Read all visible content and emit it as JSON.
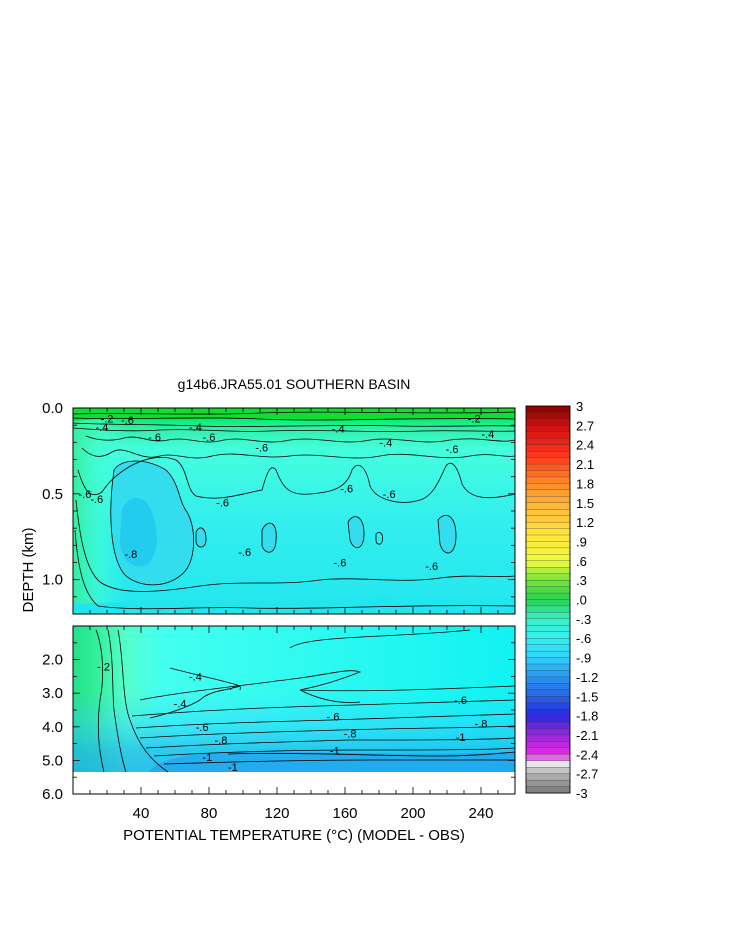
{
  "chart_data": {
    "type": "heatmap",
    "title": "g14b6.JRA55.01 SOUTHERN BASIN",
    "xlabel": "POTENTIAL TEMPERATURE (°C) (MODEL - OBS)",
    "ylabel": "DEPTH (km)",
    "xlim": [
      0,
      260
    ],
    "x_ticks": [
      "40",
      "80",
      "120",
      "160",
      "200",
      "240"
    ],
    "x_tick_values": [
      40,
      80,
      120,
      160,
      200,
      240
    ],
    "upper_panel": {
      "ylim": [
        0.0,
        1.2
      ],
      "y_ticks": [
        "0.0",
        "0.5",
        "1.0"
      ],
      "y_tick_values": [
        0.0,
        0.5,
        1.0
      ]
    },
    "lower_panel": {
      "ylim": [
        1.0,
        6.0
      ],
      "y_ticks": [
        "2.0",
        "3.0",
        "4.0",
        "5.0",
        "6.0"
      ],
      "y_tick_values": [
        2.0,
        3.0,
        4.0,
        5.0,
        6.0
      ]
    },
    "colorbar": {
      "labels": [
        "3",
        "2.7",
        "2.4",
        "2.1",
        "1.8",
        "1.5",
        "1.2",
        ".9",
        ".6",
        ".3",
        ".0",
        "-.3",
        "-.6",
        "-.9",
        "-1.2",
        "-1.5",
        "-1.8",
        "-2.1",
        "-2.4",
        "-2.7",
        "-3"
      ],
      "min": -3,
      "max": 3
    },
    "contour_labels": [
      {
        "text": "-.2",
        "x": 20,
        "d": 0.06,
        "panel": "upper"
      },
      {
        "text": "-.4",
        "x": 17,
        "d": 0.11,
        "panel": "upper"
      },
      {
        "text": "-.6",
        "x": 32,
        "d": 0.07,
        "panel": "upper"
      },
      {
        "text": "-.4",
        "x": 72,
        "d": 0.11,
        "panel": "upper"
      },
      {
        "text": "-.6",
        "x": 48,
        "d": 0.17,
        "panel": "upper"
      },
      {
        "text": "-.6",
        "x": 80,
        "d": 0.17,
        "panel": "upper"
      },
      {
        "text": "-.4",
        "x": 156,
        "d": 0.12,
        "panel": "upper"
      },
      {
        "text": "-.4",
        "x": 184,
        "d": 0.2,
        "panel": "upper"
      },
      {
        "text": "-.4",
        "x": 244,
        "d": 0.15,
        "panel": "upper"
      },
      {
        "text": "-.2",
        "x": 236,
        "d": 0.06,
        "panel": "upper"
      },
      {
        "text": "-.6",
        "x": 7,
        "d": 0.5,
        "panel": "upper"
      },
      {
        "text": "-.6",
        "x": 14,
        "d": 0.53,
        "panel": "upper"
      },
      {
        "text": "-.6",
        "x": 111,
        "d": 0.23,
        "panel": "upper"
      },
      {
        "text": "-.6",
        "x": 161,
        "d": 0.47,
        "panel": "upper"
      },
      {
        "text": "-.6",
        "x": 186,
        "d": 0.5,
        "panel": "upper"
      },
      {
        "text": "-.6",
        "x": 223,
        "d": 0.24,
        "panel": "upper"
      },
      {
        "text": "-.6",
        "x": 88,
        "d": 0.55,
        "panel": "upper"
      },
      {
        "text": "-.8",
        "x": 34,
        "d": 0.85,
        "panel": "upper"
      },
      {
        "text": "-.6",
        "x": 101,
        "d": 0.84,
        "panel": "upper"
      },
      {
        "text": "-.6",
        "x": 157,
        "d": 0.9,
        "panel": "upper"
      },
      {
        "text": "-.6",
        "x": 211,
        "d": 0.92,
        "panel": "upper"
      },
      {
        "text": "-.2",
        "x": 18,
        "d": 2.2,
        "panel": "lower"
      },
      {
        "text": "-.4",
        "x": 72,
        "d": 2.5,
        "panel": "lower"
      },
      {
        "text": "-.4",
        "x": 63,
        "d": 3.3,
        "panel": "lower"
      },
      {
        "text": "-.6",
        "x": 76,
        "d": 4.0,
        "panel": "lower"
      },
      {
        "text": "-.8",
        "x": 87,
        "d": 4.4,
        "panel": "lower"
      },
      {
        "text": "-1",
        "x": 79,
        "d": 4.9,
        "panel": "lower"
      },
      {
        "text": "-.6",
        "x": 153,
        "d": 3.7,
        "panel": "lower"
      },
      {
        "text": "-.8",
        "x": 163,
        "d": 4.2,
        "panel": "lower"
      },
      {
        "text": "-1",
        "x": 154,
        "d": 4.7,
        "panel": "lower"
      },
      {
        "text": "-.6",
        "x": 228,
        "d": 3.2,
        "panel": "lower"
      },
      {
        "text": "-.8",
        "x": 240,
        "d": 3.9,
        "panel": "lower"
      },
      {
        "text": "-1",
        "x": 228,
        "d": 4.3,
        "panel": "lower"
      },
      {
        "text": "-1",
        "x": 94,
        "d": 5.2,
        "panel": "lower"
      }
    ]
  }
}
